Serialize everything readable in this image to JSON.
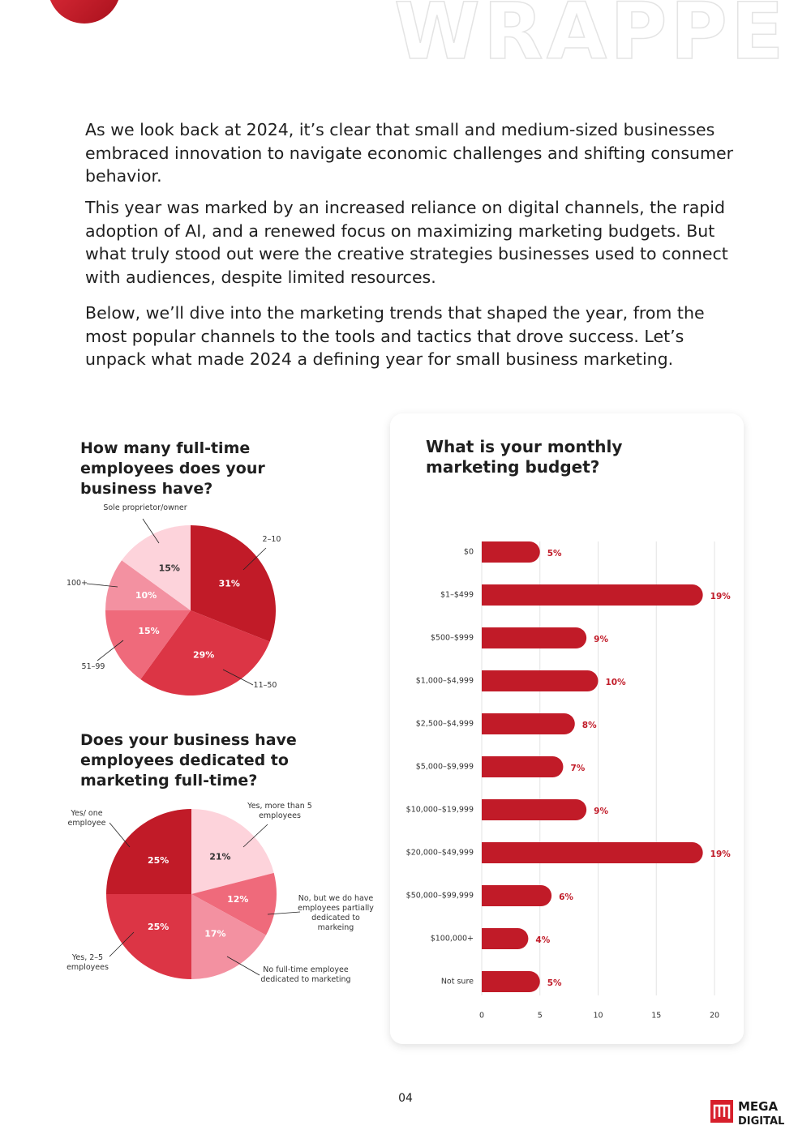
{
  "header": {
    "watermark": "WRAPPE"
  },
  "paragraphs": [
    "As we look back at 2024, it’s clear that small and medium-sized businesses embraced innovation to navigate economic challenges and shifting consumer behavior.",
    "This year was marked by an increased reliance on digital channels, the rapid adoption of AI, and a renewed focus on maximizing marketing budgets. But what truly stood out were the creative strategies businesses used to connect with audiences, despite limited resources.",
    "Below, we’ll dive into the marketing trends that shaped the year, from the most popular channels to the tools and tactics that drove success. Let’s unpack what made 2024 a defining year for small business marketing."
  ],
  "chart_data": [
    {
      "type": "pie",
      "title": "How many full-time employees does your business have?",
      "categories": [
        "2–10",
        "11–50",
        "51–99",
        "100+",
        "Sole proprietor/owner"
      ],
      "values": [
        31,
        29,
        15,
        10,
        15
      ],
      "value_labels": [
        "31%",
        "29%",
        "15%",
        "10%",
        "15%"
      ],
      "colors": [
        "#c11b28",
        "#dc3545",
        "#ef6a7b",
        "#f391a1",
        "#fdd3db"
      ]
    },
    {
      "type": "pie",
      "title": "Does your business have employees dedicated to marketing full-time?",
      "categories": [
        "Yes, more than 5 employees",
        "No, but we do have employees partially dedicated to markeing",
        "No full-time employee dedicated to marketing",
        "Yes, 2–5 employees",
        "Yes/ one employee"
      ],
      "values": [
        21,
        12,
        17,
        25,
        25
      ],
      "value_labels": [
        "21%",
        "12%",
        "17%",
        "25%",
        "25%"
      ],
      "colors": [
        "#fdd3db",
        "#ef6a7b",
        "#f391a1",
        "#dc3545",
        "#c11b28"
      ]
    },
    {
      "type": "bar",
      "orientation": "horizontal",
      "title": "What is your monthly marketing budget?",
      "categories": [
        "$0",
        "$1–$499",
        "$500–$999",
        "$1,000–$4,999",
        "$2,500–$4,999",
        "$5,000–$9,999",
        "$10,000–$19,999",
        "$20,000–$49,999",
        "$50,000–$99,999",
        "$100,000+",
        "Not sure"
      ],
      "values": [
        5,
        19,
        9,
        10,
        8,
        7,
        9,
        19,
        6,
        4,
        5
      ],
      "value_labels": [
        "5%",
        "19%",
        "9%",
        "10%",
        "8%",
        "7%",
        "9%",
        "19%",
        "6%",
        "4%",
        "5%"
      ],
      "color": "#c11b28",
      "xlim": [
        0,
        20
      ],
      "xticks": [
        0,
        5,
        10,
        15,
        20
      ],
      "grid": true
    }
  ],
  "footer": {
    "page_number": "04",
    "logo_top": "MEGA",
    "logo_bottom": "DIGITAL"
  }
}
